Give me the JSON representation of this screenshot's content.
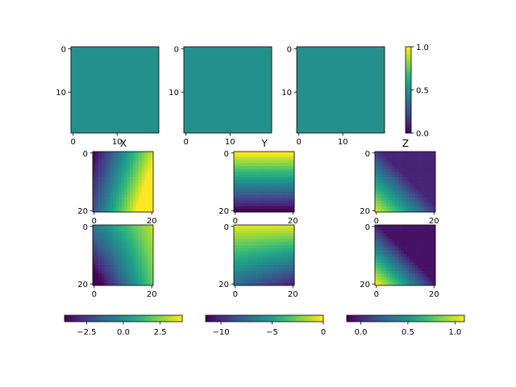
{
  "chart_data": [
    {
      "type": "heatmap",
      "panel": "top-1",
      "value": 0.5,
      "cmap_range": [
        0,
        1
      ],
      "yticks": [
        "0",
        "10"
      ],
      "xticks": [
        "0",
        "10"
      ]
    },
    {
      "type": "heatmap",
      "panel": "top-2",
      "value": 0.5,
      "cmap_range": [
        0,
        1
      ],
      "yticks": [
        "0",
        "10"
      ],
      "xticks": [
        "0",
        "10"
      ]
    },
    {
      "type": "heatmap",
      "panel": "top-3",
      "value": 0.5,
      "cmap_range": [
        0,
        1
      ],
      "yticks": [
        "0",
        "10"
      ],
      "xticks": [
        "0",
        "10"
      ]
    },
    {
      "type": "colorbar",
      "orientation": "vertical",
      "range": [
        0.0,
        1.0
      ],
      "ticks": [
        "0.0",
        "0.5",
        "1.0"
      ]
    },
    {
      "type": "heatmap",
      "panel": "X",
      "title": "X",
      "pattern": "x_top",
      "xticks": [
        "0",
        "20"
      ],
      "yticks": [
        "0",
        "20"
      ]
    },
    {
      "type": "heatmap",
      "panel": "Y",
      "title": "Y",
      "pattern": "y_top",
      "xticks": [
        "0",
        "20"
      ],
      "yticks": [
        "0",
        "20"
      ]
    },
    {
      "type": "heatmap",
      "panel": "Z",
      "title": "Z",
      "pattern": "z_top",
      "xticks": [
        "0",
        "20"
      ],
      "yticks": [
        "0",
        "20"
      ]
    },
    {
      "type": "heatmap",
      "panel": "X-bottom",
      "pattern": "x_bot",
      "xticks": [
        "0",
        "20"
      ],
      "yticks": [
        "0",
        "20"
      ]
    },
    {
      "type": "heatmap",
      "panel": "Y-bottom",
      "pattern": "y_bot",
      "xticks": [
        "0",
        "20"
      ],
      "yticks": [
        "0",
        "20"
      ]
    },
    {
      "type": "heatmap",
      "panel": "Z-bottom",
      "pattern": "z_bot",
      "xticks": [
        "0",
        "20"
      ],
      "yticks": [
        "0",
        "20"
      ]
    },
    {
      "type": "colorbar",
      "orientation": "horizontal",
      "range": [
        -4,
        4
      ],
      "ticks": [
        "−2.5",
        "0.0",
        "2.5"
      ],
      "tick_values": [
        -2.5,
        0,
        2.5
      ]
    },
    {
      "type": "colorbar",
      "orientation": "horizontal",
      "range": [
        -11.5,
        0
      ],
      "ticks": [
        "−10",
        "−5",
        "0"
      ],
      "tick_values": [
        -10,
        -5,
        0
      ]
    },
    {
      "type": "colorbar",
      "orientation": "horizontal",
      "range": [
        -0.15,
        1.1
      ],
      "ticks": [
        "0.0",
        "0.5",
        "1.0"
      ],
      "tick_values": [
        0,
        0.5,
        1.0
      ]
    }
  ],
  "colors": {
    "viridis": [
      "#440154",
      "#482878",
      "#3e4989",
      "#31688e",
      "#26828e",
      "#1f9e89",
      "#35b779",
      "#6ece58",
      "#b5de2b",
      "#fde725"
    ]
  }
}
